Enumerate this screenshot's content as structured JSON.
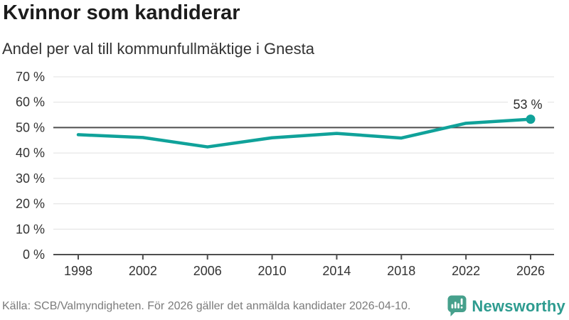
{
  "header": {
    "title": "Kvinnor som kandiderar",
    "subtitle": "Andel per val till kommunfullmäktige i Gnesta"
  },
  "chart_data": {
    "type": "line",
    "title": "Kvinnor som kandiderar",
    "subtitle": "Andel per val till kommunfullmäktige i Gnesta",
    "x": [
      1998,
      2002,
      2006,
      2010,
      2014,
      2018,
      2022,
      2026
    ],
    "values": [
      47.2,
      46.1,
      42.4,
      46.0,
      47.7,
      45.9,
      51.7,
      53.3
    ],
    "end_point_label": "53 %",
    "xticks": [
      1998,
      2002,
      2006,
      2010,
      2014,
      2018,
      2022,
      2026
    ],
    "xlabel": "",
    "ylabel": "",
    "ylim": [
      0,
      70
    ],
    "ytick_step": 10,
    "ytick_format": "{v} %",
    "reference_line": 50,
    "grid": true,
    "legend": "none",
    "colors": {
      "line": "#10A29A",
      "reference_line": "#4e4e4e",
      "gridline": "#e0e0e0",
      "axis_text": "#333333",
      "end_label_text": "#2b2b2b"
    }
  },
  "footer": {
    "source": "Källa: SCB/Valmyndigheten. För 2026 gäller det anmälda kandidater 2026-04-10.",
    "brand": "Newsworthy",
    "brand_text_color": "#2E9C90",
    "brand_icon_color": "#46A08C"
  }
}
